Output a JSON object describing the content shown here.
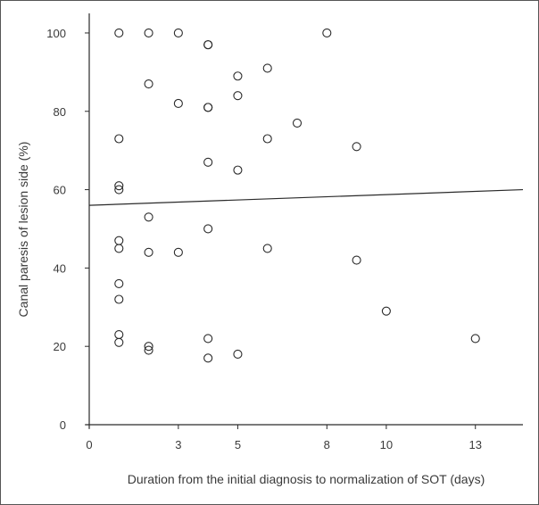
{
  "chart_data": {
    "type": "scatter",
    "xlabel": "Duration from the initial diagnosis to normalization of SOT (days)",
    "ylabel": "Canal paresis of lesion side (%)",
    "xlim": [
      0,
      14.6
    ],
    "ylim": [
      0,
      105
    ],
    "xticks": [
      0,
      3,
      5,
      8,
      10,
      13
    ],
    "xtick_labels": [
      "0",
      "3",
      "5",
      "8",
      "10",
      "13"
    ],
    "yticks": [
      0,
      20,
      40,
      60,
      80,
      100
    ],
    "ytick_labels": [
      "0",
      "20",
      "40",
      "60",
      "80",
      "100"
    ],
    "grid": false,
    "points": [
      {
        "x": 1,
        "y": 100
      },
      {
        "x": 2,
        "y": 100
      },
      {
        "x": 3,
        "y": 100
      },
      {
        "x": 4,
        "y": 97
      },
      {
        "x": 4,
        "y": 97
      },
      {
        "x": 8,
        "y": 100
      },
      {
        "x": 5,
        "y": 89
      },
      {
        "x": 6,
        "y": 91
      },
      {
        "x": 2,
        "y": 87
      },
      {
        "x": 5,
        "y": 84
      },
      {
        "x": 3,
        "y": 82
      },
      {
        "x": 4,
        "y": 81
      },
      {
        "x": 4,
        "y": 81
      },
      {
        "x": 7,
        "y": 77
      },
      {
        "x": 1,
        "y": 73
      },
      {
        "x": 6,
        "y": 73
      },
      {
        "x": 9,
        "y": 71
      },
      {
        "x": 4,
        "y": 67
      },
      {
        "x": 5,
        "y": 65
      },
      {
        "x": 1,
        "y": 61
      },
      {
        "x": 1,
        "y": 60
      },
      {
        "x": 2,
        "y": 53
      },
      {
        "x": 4,
        "y": 50
      },
      {
        "x": 1,
        "y": 47
      },
      {
        "x": 1,
        "y": 45
      },
      {
        "x": 2,
        "y": 44
      },
      {
        "x": 3,
        "y": 44
      },
      {
        "x": 6,
        "y": 45
      },
      {
        "x": 9,
        "y": 42
      },
      {
        "x": 1,
        "y": 36
      },
      {
        "x": 1,
        "y": 32
      },
      {
        "x": 10,
        "y": 29
      },
      {
        "x": 1,
        "y": 23
      },
      {
        "x": 1,
        "y": 21
      },
      {
        "x": 2,
        "y": 20
      },
      {
        "x": 2,
        "y": 19
      },
      {
        "x": 4,
        "y": 22
      },
      {
        "x": 13,
        "y": 22
      },
      {
        "x": 4,
        "y": 17
      },
      {
        "x": 5,
        "y": 18
      }
    ],
    "trendline": {
      "x": [
        0,
        14.6
      ],
      "y": [
        56,
        60
      ]
    }
  }
}
